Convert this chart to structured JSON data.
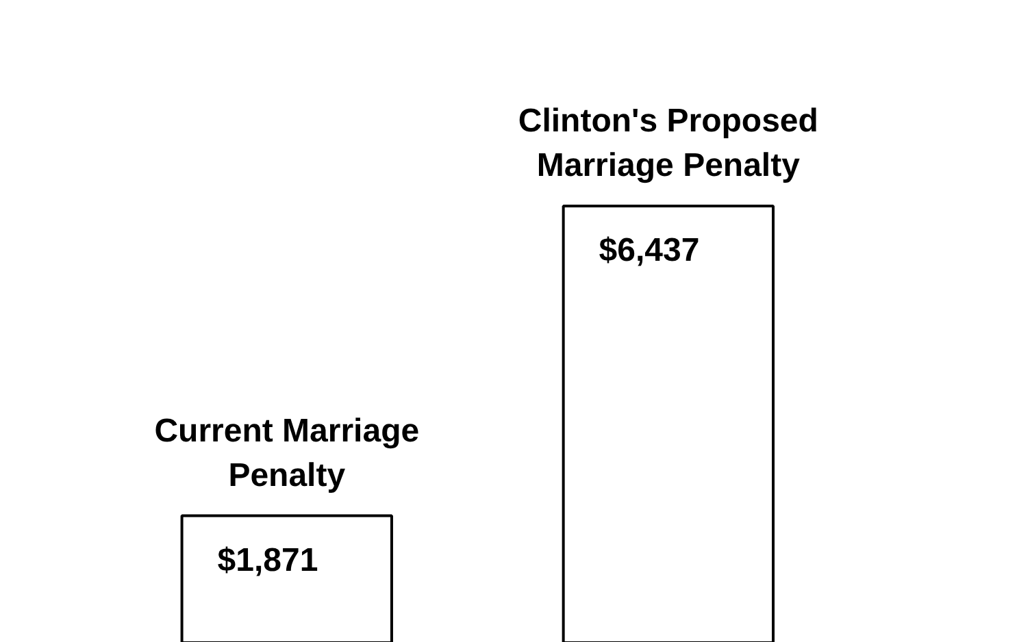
{
  "chart_data": {
    "type": "bar",
    "tick_labels": false,
    "categories": [
      "Current Marriage Penalty",
      "Clinton's Proposed Marriage Penalty"
    ],
    "values": [
      1871,
      6437
    ],
    "value_labels": [
      "$1,871",
      "$6,437"
    ],
    "color": "#ffffff"
  }
}
